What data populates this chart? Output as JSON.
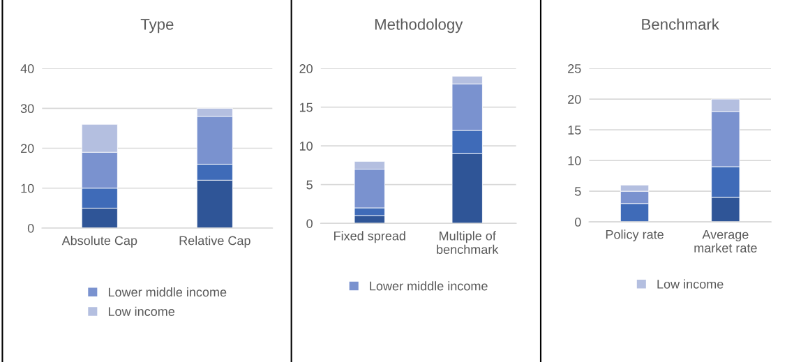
{
  "chart_data": [
    {
      "type": "bar",
      "title": "Type",
      "stacked": true,
      "categories": [
        "Absolute Cap",
        "Relative Cap"
      ],
      "ylim": [
        0,
        40
      ],
      "yticks": [
        0,
        10,
        20,
        30,
        40
      ],
      "grid": "y",
      "legend": "bottom",
      "series": [
        {
          "color": "#2f5597",
          "values": [
            5,
            12
          ]
        },
        {
          "color": "#3f6bb8",
          "values": [
            5,
            4
          ]
        },
        {
          "name": "Lower middle income",
          "color": "#7a92cf",
          "values": [
            9,
            12
          ]
        },
        {
          "name": "Low income",
          "color": "#b4bfe0",
          "values": [
            7,
            2
          ]
        }
      ]
    },
    {
      "type": "bar",
      "title": "Methodology",
      "stacked": true,
      "categories": [
        "Fixed spread",
        "Multiple of\nbenchmark"
      ],
      "ylim": [
        0,
        20
      ],
      "yticks": [
        0,
        5,
        10,
        15,
        20
      ],
      "grid": "y",
      "legend": "bottom",
      "series": [
        {
          "color": "#2f5597",
          "values": [
            1,
            9
          ]
        },
        {
          "color": "#3f6bb8",
          "values": [
            1,
            3
          ]
        },
        {
          "name": "Lower middle income",
          "color": "#7a92cf",
          "values": [
            5,
            6
          ]
        },
        {
          "color": "#b4bfe0",
          "values": [
            1,
            1
          ]
        }
      ]
    },
    {
      "type": "bar",
      "title": "Benchmark",
      "stacked": true,
      "categories": [
        "Policy rate",
        "Average\nmarket rate"
      ],
      "ylim": [
        0,
        25
      ],
      "yticks": [
        0,
        5,
        10,
        15,
        20,
        25
      ],
      "grid": "y",
      "legend": "bottom",
      "series": [
        {
          "color": "#2f5597",
          "values": [
            0,
            4
          ]
        },
        {
          "color": "#3f6bb8",
          "values": [
            3,
            5
          ]
        },
        {
          "color": "#7a92cf",
          "values": [
            2,
            9
          ]
        },
        {
          "name": "Low income",
          "color": "#b4bfe0",
          "values": [
            1,
            2
          ]
        }
      ]
    }
  ]
}
